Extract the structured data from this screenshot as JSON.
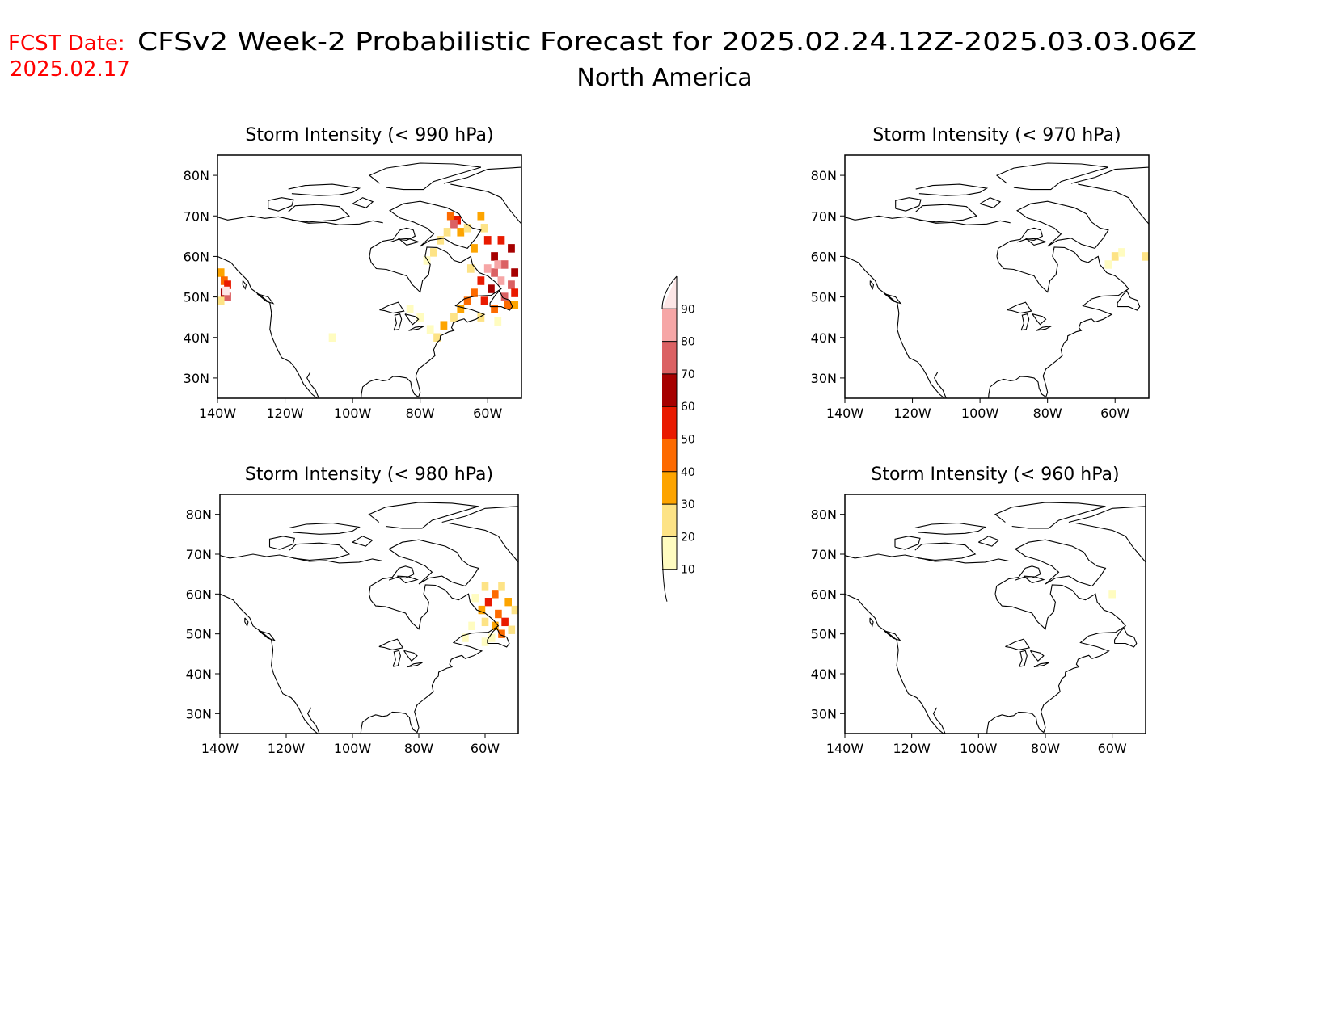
{
  "fcst": {
    "label": "FCST Date:",
    "date": "2025.02.17",
    "color": "#ff0000"
  },
  "title": {
    "line1": "CFSv2 Week-2 Probabilistic Forecast for 2025.02.24.12Z-2025.03.03.06Z",
    "line2": "North America"
  },
  "axes": {
    "lat_labels": [
      "80N",
      "70N",
      "60N",
      "50N",
      "40N",
      "30N"
    ],
    "lon_labels": [
      "140W",
      "120W",
      "100W",
      "80W",
      "60W"
    ],
    "lat_range": [
      25,
      85
    ],
    "lon_range": [
      -140,
      -50
    ]
  },
  "panels": [
    {
      "id": "990",
      "title": "Storm Intensity (< 990 hPa)"
    },
    {
      "id": "970",
      "title": "Storm Intensity (< 970 hPa)"
    },
    {
      "id": "980",
      "title": "Storm Intensity (< 980 hPa)"
    },
    {
      "id": "960",
      "title": "Storm Intensity (< 960 hPa)"
    }
  ],
  "colorbar": {
    "levels": [
      "10",
      "20",
      "30",
      "40",
      "50",
      "60",
      "70",
      "80",
      "90"
    ],
    "colors": [
      "#fffcc0",
      "#fde386",
      "#fda400",
      "#fd6a00",
      "#e91a00",
      "#a60000",
      "#db6163",
      "#f6a6a6",
      "#fde6e6"
    ]
  }
}
